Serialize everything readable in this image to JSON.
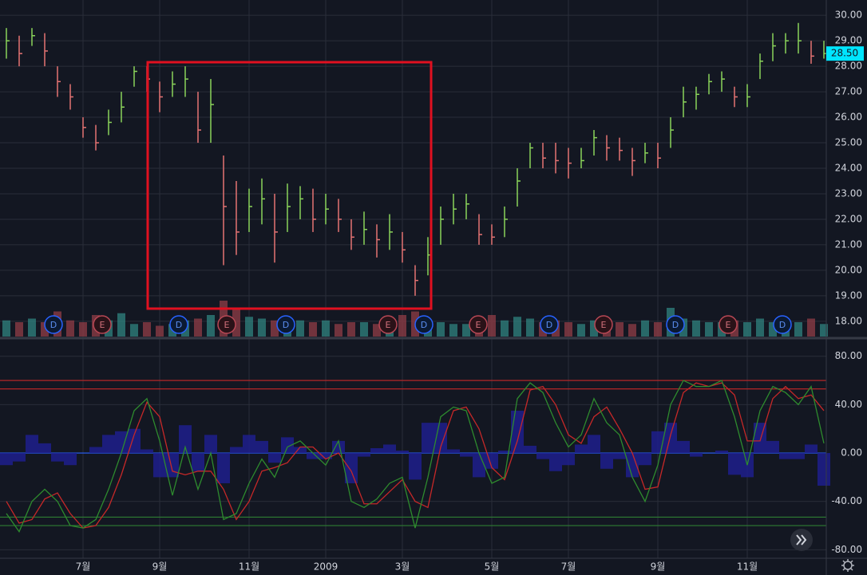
{
  "chart_data": {
    "type": "ohlc-bars",
    "colors": {
      "up": "#8bd45a",
      "down": "#e57373",
      "volume_up": "#2e7d7a",
      "volume_down": "#8a3b45",
      "osc_fast": "#2e8b2e",
      "osc_slow": "#c62828",
      "histogram": "#1e1e8c",
      "current_price": "#00e5ff"
    },
    "categories": [
      null,
      null,
      null,
      null,
      null,
      null,
      "7월",
      null,
      null,
      null,
      null,
      null,
      "9월",
      null,
      null,
      null,
      null,
      null,
      null,
      "11월",
      null,
      null,
      null,
      null,
      null,
      "2009",
      null,
      null,
      null,
      null,
      null,
      "3월",
      null,
      null,
      null,
      null,
      null,
      null,
      "5월",
      null,
      null,
      null,
      null,
      null,
      "7월",
      null,
      null,
      null,
      null,
      null,
      null,
      "9월",
      null,
      null,
      null,
      null,
      null,
      null,
      "11월",
      null,
      null,
      null,
      null,
      null,
      null
    ],
    "close": [
      29.0,
      28.5,
      29.2,
      28.6,
      27.4,
      26.8,
      25.6,
      25.0,
      25.8,
      26.4,
      27.8,
      27.5,
      26.8,
      27.3,
      27.5,
      25.5,
      26.5,
      22.5,
      21.5,
      22.5,
      22.8,
      21.5,
      22.5,
      22.8,
      22.0,
      22.4,
      22.0,
      21.3,
      21.6,
      21.2,
      21.5,
      20.8,
      19.6,
      20.6,
      22.0,
      22.4,
      22.6,
      21.4,
      21.3,
      22.0,
      23.5,
      24.8,
      24.4,
      24.3,
      24.2,
      24.3,
      25.2,
      24.8,
      24.7,
      24.3,
      24.6,
      24.4,
      25.5,
      26.6,
      26.9,
      27.4,
      27.5,
      26.8,
      26.8,
      28.2,
      28.8,
      29.0,
      29.0,
      28.4,
      28.5
    ],
    "high": [
      29.5,
      29.2,
      29.5,
      29.3,
      28.0,
      27.3,
      26.0,
      25.7,
      26.3,
      27.0,
      28.0,
      28.0,
      27.4,
      27.8,
      28.0,
      27.0,
      27.5,
      24.5,
      23.5,
      23.2,
      23.6,
      23.0,
      23.4,
      23.3,
      23.2,
      23.0,
      22.8,
      22.0,
      22.3,
      21.8,
      22.2,
      21.5,
      20.2,
      21.3,
      22.5,
      23.0,
      23.0,
      22.2,
      21.8,
      22.5,
      24.0,
      25.0,
      25.0,
      25.0,
      24.8,
      24.8,
      25.5,
      25.3,
      25.2,
      24.8,
      25.0,
      25.0,
      26.0,
      27.2,
      27.2,
      27.7,
      27.8,
      27.2,
      27.3,
      28.5,
      29.3,
      29.3,
      29.7,
      29.0,
      29.0
    ],
    "low": [
      28.3,
      28.0,
      28.8,
      28.0,
      26.8,
      26.3,
      25.2,
      24.7,
      25.3,
      25.8,
      27.2,
      27.0,
      26.2,
      26.8,
      26.8,
      25.0,
      25.0,
      20.2,
      20.6,
      21.5,
      21.8,
      20.3,
      21.5,
      22.0,
      21.5,
      21.8,
      21.5,
      20.8,
      21.0,
      20.5,
      20.8,
      20.3,
      19.0,
      19.8,
      21.0,
      21.8,
      22.0,
      21.0,
      21.0,
      21.3,
      22.5,
      24.0,
      24.0,
      23.8,
      23.6,
      24.0,
      24.5,
      24.3,
      24.3,
      23.7,
      24.2,
      24.0,
      24.8,
      26.0,
      26.3,
      26.9,
      27.0,
      26.4,
      26.4,
      27.5,
      28.2,
      28.5,
      28.5,
      28.1,
      28.3
    ],
    "volume": [
      9,
      8,
      10,
      8,
      14,
      9,
      8,
      12,
      9,
      13,
      7,
      8,
      6,
      7,
      9,
      10,
      12,
      20,
      16,
      11,
      10,
      9,
      8,
      9,
      8,
      9,
      7,
      8,
      8,
      7,
      9,
      12,
      14,
      9,
      8,
      7,
      7,
      8,
      12,
      9,
      11,
      10,
      8,
      9,
      8,
      7,
      9,
      8,
      8,
      7,
      9,
      8,
      16,
      10,
      9,
      8,
      8,
      9,
      8,
      10,
      8,
      9,
      8,
      10,
      7
    ],
    "osc_fast": [
      -50,
      -65,
      -40,
      -30,
      -40,
      -60,
      -62,
      -55,
      -30,
      0,
      35,
      45,
      10,
      -35,
      5,
      -30,
      0,
      -55,
      -50,
      -25,
      -5,
      -20,
      5,
      10,
      0,
      -10,
      10,
      -40,
      -45,
      -38,
      -25,
      -20,
      -62,
      -20,
      30,
      38,
      35,
      0,
      -25,
      -20,
      45,
      58,
      50,
      25,
      5,
      15,
      45,
      25,
      15,
      -20,
      -40,
      -10,
      40,
      60,
      55,
      55,
      60,
      30,
      -10,
      35,
      55,
      50,
      40,
      55,
      8
    ],
    "osc_slow": [
      -40,
      -58,
      -55,
      -38,
      -33,
      -50,
      -62,
      -60,
      -45,
      -18,
      15,
      42,
      30,
      -15,
      -18,
      -15,
      -15,
      -30,
      -55,
      -40,
      -15,
      -12,
      -8,
      5,
      5,
      -5,
      0,
      -15,
      -42,
      -42,
      -32,
      -22,
      -40,
      -45,
      5,
      35,
      38,
      20,
      -12,
      -22,
      10,
      52,
      55,
      40,
      15,
      8,
      30,
      38,
      20,
      0,
      -30,
      -28,
      15,
      50,
      58,
      55,
      58,
      48,
      10,
      10,
      45,
      55,
      45,
      48,
      35
    ],
    "histogram": [
      -10,
      -7,
      15,
      8,
      -7,
      -10,
      0,
      5,
      15,
      18,
      20,
      3,
      -20,
      -20,
      23,
      -15,
      15,
      -25,
      5,
      15,
      10,
      -8,
      13,
      5,
      -5,
      -5,
      10,
      -25,
      -3,
      4,
      7,
      2,
      -22,
      25,
      25,
      3,
      -3,
      -20,
      -13,
      2,
      35,
      6,
      -5,
      -15,
      -10,
      7,
      15,
      -13,
      -5,
      -20,
      -10,
      18,
      25,
      10,
      -3,
      0,
      2,
      -18,
      -20,
      25,
      10,
      -5,
      -5,
      7,
      -27
    ],
    "levels": [
      60,
      53,
      0,
      -53,
      -60
    ],
    "ylim": [
      17.4,
      30.6
    ],
    "yticks": [
      {
        "value": 18,
        "label": "18.00"
      },
      {
        "value": 19,
        "label": "19.00"
      },
      {
        "value": 20,
        "label": "20.00"
      },
      {
        "value": 21,
        "label": "21.00"
      },
      {
        "value": 22,
        "label": "22.00"
      },
      {
        "value": 23,
        "label": "23.00"
      },
      {
        "value": 24,
        "label": "24.00"
      },
      {
        "value": 25,
        "label": "25.00"
      },
      {
        "value": 26,
        "label": "26.00"
      },
      {
        "value": 27,
        "label": "27.00"
      },
      {
        "value": 28,
        "label": "28.00"
      },
      {
        "value": 29,
        "label": "29.00"
      },
      {
        "value": 30,
        "label": "30.00"
      }
    ],
    "y2lim": [
      -87,
      93
    ],
    "y2ticks": [
      {
        "value": 80,
        "label": "80.00"
      },
      {
        "value": 40,
        "label": "40.00"
      },
      {
        "value": 0,
        "label": "0.00"
      },
      {
        "value": -40,
        "label": "-40.00"
      },
      {
        "value": -80,
        "label": "-80.00"
      }
    ],
    "current_price": {
      "value": 28.5,
      "label": "28.50"
    },
    "events": [
      "D",
      "E",
      "D",
      "E",
      "D",
      "E",
      "D",
      "E",
      "D",
      "E",
      "D",
      "E",
      "D"
    ]
  }
}
